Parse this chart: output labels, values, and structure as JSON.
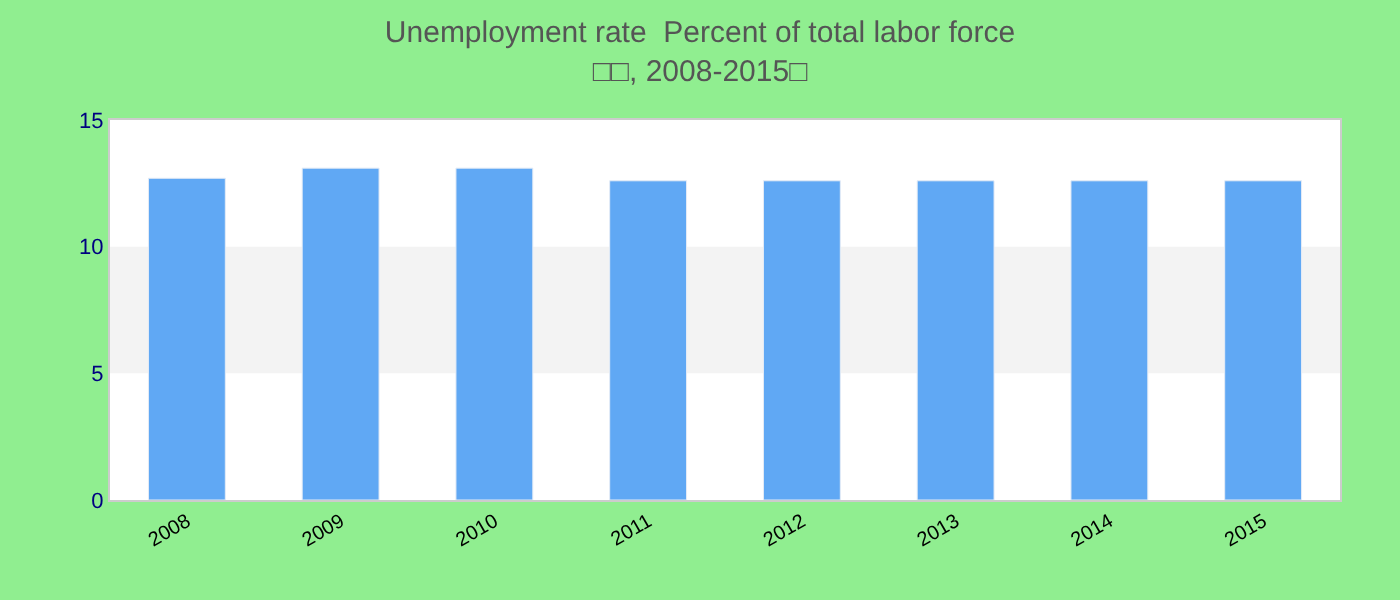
{
  "chart_data": {
    "type": "bar",
    "title": "Unemployment rate  Percent of total labor force",
    "subtitle": "□□, 2008-2015□",
    "categories": [
      "2008",
      "2009",
      "2010",
      "2011",
      "2012",
      "2013",
      "2014",
      "2015"
    ],
    "values": [
      12.7,
      13.1,
      13.1,
      12.6,
      12.6,
      12.6,
      12.6,
      12.6
    ],
    "color": "#60a8f4",
    "ylim": [
      0,
      15
    ],
    "yticks": [
      0,
      5,
      10,
      15
    ],
    "bands": [
      {
        "axis": "y",
        "from": 5,
        "to": 10,
        "color": "#f3f3f3"
      }
    ]
  }
}
